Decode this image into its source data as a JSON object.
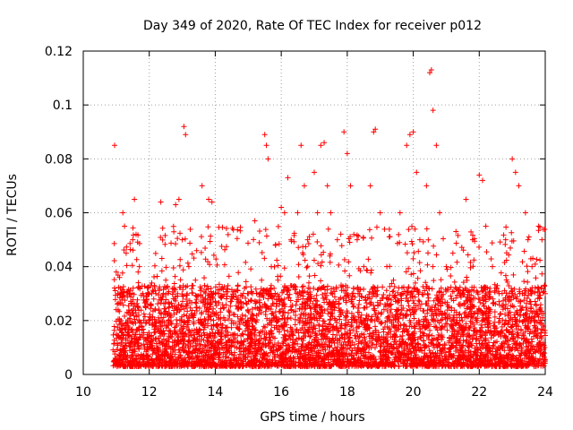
{
  "chart_data": {
    "type": "scatter",
    "title": "Day 349 of 2020, Rate Of TEC Index for receiver p012",
    "xlabel": "GPS time / hours",
    "ylabel": "ROTI / TECUs",
    "xlim": [
      10,
      24
    ],
    "ylim": [
      0,
      0.12
    ],
    "xticks": [
      "10",
      "12",
      "14",
      "16",
      "18",
      "20",
      "22",
      "24"
    ],
    "yticks": [
      "0",
      "0.02",
      "0.04",
      "0.06",
      "0.08",
      "0.1",
      "0.12"
    ],
    "grid": true,
    "marker": "+",
    "color": "#ff0000",
    "series": [
      {
        "values_note_free": true,
        "points": [
          [
            10.95,
            0.085
          ],
          [
            11.0,
            0.038
          ],
          [
            11.05,
            0.03
          ],
          [
            11.1,
            0.036
          ],
          [
            11.15,
            0.02
          ],
          [
            11.2,
            0.06
          ],
          [
            11.25,
            0.055
          ],
          [
            11.3,
            0.045
          ],
          [
            11.4,
            0.03
          ],
          [
            11.5,
            0.05
          ],
          [
            11.55,
            0.065
          ],
          [
            11.6,
            0.052
          ],
          [
            11.7,
            0.04
          ],
          [
            11.8,
            0.03
          ],
          [
            11.9,
            0.025
          ],
          [
            12.0,
            0.02
          ],
          [
            12.2,
            0.03
          ],
          [
            12.35,
            0.064
          ],
          [
            12.5,
            0.035
          ],
          [
            12.6,
            0.025
          ],
          [
            12.8,
            0.063
          ],
          [
            12.9,
            0.065
          ],
          [
            13.0,
            0.05
          ],
          [
            13.05,
            0.092
          ],
          [
            13.1,
            0.089
          ],
          [
            13.2,
            0.04
          ],
          [
            13.4,
            0.035
          ],
          [
            13.6,
            0.07
          ],
          [
            13.8,
            0.065
          ],
          [
            13.9,
            0.064
          ],
          [
            14.0,
            0.03
          ],
          [
            14.2,
            0.015
          ],
          [
            14.5,
            0.02
          ],
          [
            14.8,
            0.025
          ],
          [
            15.0,
            0.03
          ],
          [
            15.2,
            0.057
          ],
          [
            15.4,
            0.03
          ],
          [
            15.5,
            0.089
          ],
          [
            15.55,
            0.085
          ],
          [
            15.6,
            0.08
          ],
          [
            15.7,
            0.04
          ],
          [
            15.9,
            0.035
          ],
          [
            16.0,
            0.062
          ],
          [
            16.1,
            0.06
          ],
          [
            16.2,
            0.073
          ],
          [
            16.3,
            0.05
          ],
          [
            16.5,
            0.06
          ],
          [
            16.6,
            0.085
          ],
          [
            16.7,
            0.07
          ],
          [
            16.8,
            0.05
          ],
          [
            17.0,
            0.075
          ],
          [
            17.1,
            0.06
          ],
          [
            17.2,
            0.085
          ],
          [
            17.3,
            0.086
          ],
          [
            17.4,
            0.07
          ],
          [
            17.5,
            0.06
          ],
          [
            17.7,
            0.05
          ],
          [
            17.9,
            0.09
          ],
          [
            18.0,
            0.082
          ],
          [
            18.1,
            0.07
          ],
          [
            18.3,
            0.05
          ],
          [
            18.5,
            0.04
          ],
          [
            18.7,
            0.07
          ],
          [
            18.8,
            0.09
          ],
          [
            18.85,
            0.091
          ],
          [
            19.0,
            0.06
          ],
          [
            19.2,
            0.04
          ],
          [
            19.4,
            0.035
          ],
          [
            19.6,
            0.06
          ],
          [
            19.8,
            0.085
          ],
          [
            19.9,
            0.089
          ],
          [
            20.0,
            0.09
          ],
          [
            20.1,
            0.075
          ],
          [
            20.2,
            0.05
          ],
          [
            20.4,
            0.07
          ],
          [
            20.5,
            0.112
          ],
          [
            20.55,
            0.113
          ],
          [
            20.6,
            0.098
          ],
          [
            20.7,
            0.085
          ],
          [
            20.8,
            0.06
          ],
          [
            21.0,
            0.04
          ],
          [
            21.2,
            0.045
          ],
          [
            21.4,
            0.03
          ],
          [
            21.6,
            0.065
          ],
          [
            21.8,
            0.05
          ],
          [
            22.0,
            0.074
          ],
          [
            22.1,
            0.072
          ],
          [
            22.2,
            0.055
          ],
          [
            22.4,
            0.04
          ],
          [
            22.6,
            0.03
          ],
          [
            22.8,
            0.05
          ],
          [
            23.0,
            0.08
          ],
          [
            23.1,
            0.075
          ],
          [
            23.2,
            0.07
          ],
          [
            23.4,
            0.06
          ],
          [
            23.6,
            0.04
          ],
          [
            23.8,
            0.055
          ],
          [
            23.9,
            0.05
          ],
          [
            24.0,
            0.03
          ]
        ]
      }
    ]
  }
}
